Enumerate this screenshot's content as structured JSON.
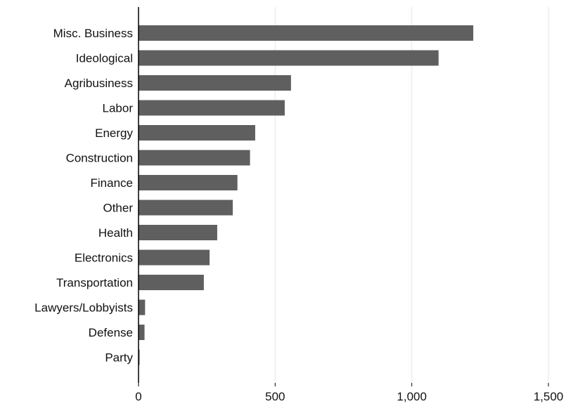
{
  "chart_data": {
    "type": "bar",
    "orientation": "horizontal",
    "title": "",
    "xlabel": "",
    "ylabel": "",
    "categories": [
      "Misc. Business",
      "Ideological",
      "Agribusiness",
      "Labor",
      "Energy",
      "Construction",
      "Finance",
      "Other",
      "Health",
      "Electronics",
      "Transportation",
      "Lawyers/Lobbyists",
      "Defense",
      "Party"
    ],
    "values": [
      1225,
      1098,
      558,
      535,
      427,
      408,
      362,
      345,
      288,
      260,
      239,
      24,
      22,
      4
    ],
    "xlim": [
      0,
      1500
    ],
    "xticks": [
      0,
      500,
      1000,
      1500
    ],
    "xtick_labels": [
      "0",
      "500",
      "1,000",
      "1,500"
    ],
    "grid": "vertical",
    "legend": "none",
    "colors": {
      "bar": "#5f5f5f",
      "grid": "#e6e6e6",
      "axis": "#000000"
    }
  }
}
